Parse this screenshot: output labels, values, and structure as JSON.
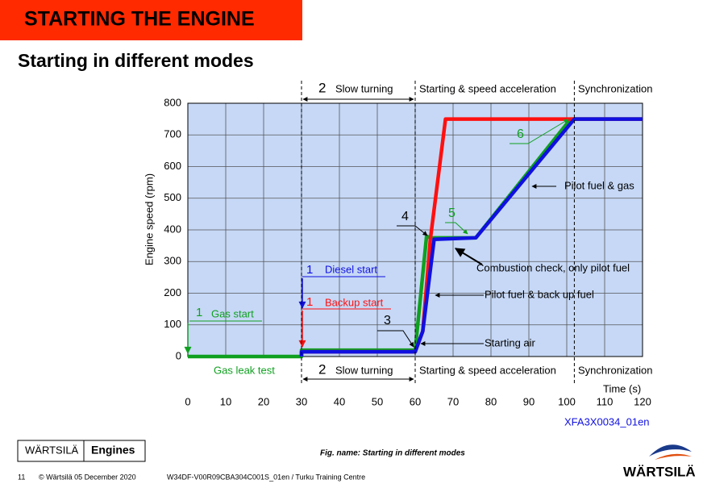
{
  "header": {
    "title": "STARTING THE ENGINE",
    "subtitle": "Starting in different modes"
  },
  "chart_data": {
    "type": "line",
    "ylabel": "Engine speed (rpm)",
    "xlabel": "Time (s)",
    "figure_code": "XFA3X0034_01en",
    "xlim": [
      0,
      120
    ],
    "xticks": [
      0,
      10,
      20,
      30,
      40,
      50,
      60,
      70,
      80,
      90,
      100,
      110,
      120
    ],
    "ylim": [
      0,
      800
    ],
    "yticks": [
      0,
      100,
      200,
      300,
      400,
      500,
      600,
      700,
      800
    ],
    "grid": true,
    "phase_boundaries": [
      30,
      60,
      102
    ],
    "series": [
      {
        "name": "Gas start",
        "color": "#10a020",
        "x": [
          0,
          30,
          30,
          60,
          63,
          64,
          76,
          101,
          120
        ],
        "values": [
          0,
          0,
          20,
          20,
          380,
          375,
          375,
          750,
          750
        ]
      },
      {
        "name": "Backup start",
        "color": "#ff1010",
        "x": [
          30,
          30,
          60,
          62,
          64,
          68,
          120
        ],
        "values": [
          0,
          15,
          15,
          80,
          370,
          750,
          750
        ]
      },
      {
        "name": "Diesel start",
        "color": "#1010e0",
        "x": [
          30,
          30,
          60,
          62,
          65,
          76,
          102,
          120
        ],
        "values": [
          0,
          15,
          15,
          80,
          370,
          375,
          750,
          750
        ]
      }
    ],
    "annotations": [
      "1",
      "1",
      "1",
      "2",
      "Slow turning",
      "2",
      "Slow turning",
      "3",
      "4",
      "5",
      "6",
      "Starting & speed acceleration",
      "Starting & speed acceleration",
      "Synchronization",
      "Synchronization",
      "Gas leak test",
      "Pilot fuel & gas",
      "Combustion check, only pilot fuel",
      "Pilot fuel & back up fuel",
      "Starting air"
    ]
  },
  "footer": {
    "brand": "WÄRTSILÄ",
    "section": "Engines",
    "figure_name": "Fig. name: Starting in different modes",
    "page": "11",
    "copyright": "© Wärtsilä  05 December 2020",
    "document": "W34DF-V00R09CBA304C001S_01en / Turku Training Centre",
    "logo": "WÄRTSILÄ"
  }
}
